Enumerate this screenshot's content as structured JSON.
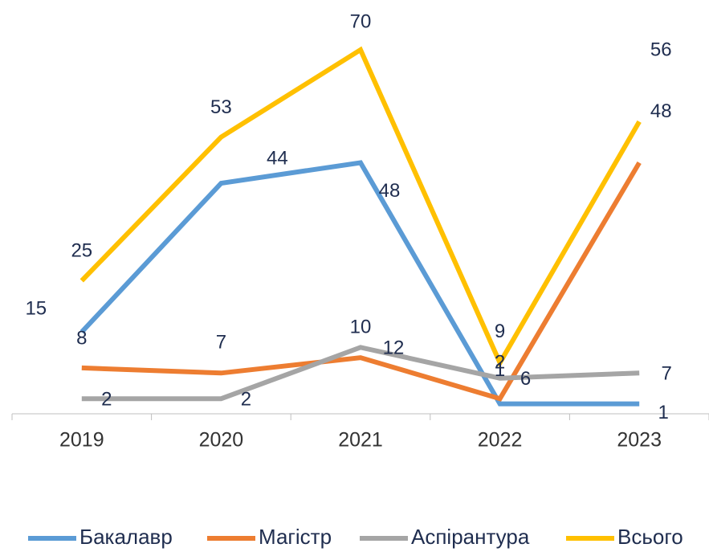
{
  "chart_data": {
    "type": "line",
    "categories": [
      "2019",
      "2020",
      "2021",
      "2022",
      "2023"
    ],
    "series": [
      {
        "name": "Бакалавр",
        "color": "#5b9bd5",
        "values": [
          15,
          44,
          48,
          1,
          1
        ]
      },
      {
        "name": "Магістр",
        "color": "#ed7d31",
        "values": [
          8,
          7,
          10,
          2,
          48
        ]
      },
      {
        "name": "Аспірантура",
        "color": "#a5a5a5",
        "values": [
          2,
          2,
          12,
          6,
          7
        ]
      },
      {
        "name": "Всього",
        "color": "#ffc000",
        "values": [
          25,
          53,
          70,
          9,
          56
        ]
      }
    ],
    "ylim": [
      0,
      70
    ],
    "grid": false,
    "legend": "bottom"
  }
}
